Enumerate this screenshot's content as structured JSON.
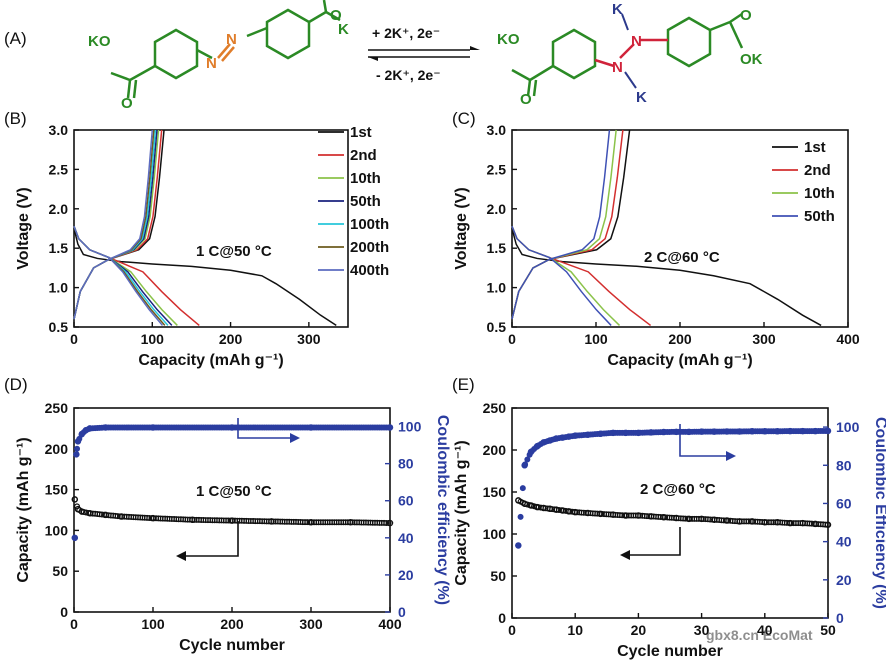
{
  "panel_a": {
    "label": "(A)",
    "left_molecule": {
      "groups": [
        "KO",
        "K"
      ],
      "link_atoms": [
        "N",
        "N"
      ],
      "oxygen": "O"
    },
    "right_molecule": {
      "groups": [
        "KO",
        "OK"
      ],
      "link_atoms": [
        "N",
        "N"
      ],
      "potassium": "K",
      "oxygen": "O"
    },
    "forward_label": "+ 2K⁺, 2e⁻",
    "reverse_label": "- 2K⁺, 2e⁻",
    "colors": {
      "carbon": "#2b8a25",
      "nitrogen_left": "#e07d2a",
      "nitrogen_right": "#d0233a",
      "potassium": "#2c3a8c"
    }
  },
  "chart_data": [
    {
      "panel": "(B)",
      "type": "line",
      "xlabel": "Capacity (mAh g⁻¹)",
      "ylabel": "Voltage (V)",
      "xlim": [
        0,
        350
      ],
      "ylim": [
        0.5,
        3.0
      ],
      "xticks": [
        "0",
        "100",
        "200",
        "300"
      ],
      "yticks": [
        "0.5",
        "1.0",
        "1.5",
        "2.0",
        "2.5",
        "3.0"
      ],
      "annotation": "1 C@50 °C",
      "legend_position": "top-right",
      "series": [
        {
          "name": "1st",
          "color": "#111111",
          "discharge_capacity": 335,
          "charge_capacity": 115
        },
        {
          "name": "2nd",
          "color": "#d32f2f",
          "discharge_capacity": 160,
          "charge_capacity": 112
        },
        {
          "name": "10th",
          "color": "#8bc34a",
          "discharge_capacity": 132,
          "charge_capacity": 108
        },
        {
          "name": "50th",
          "color": "#1a237e",
          "discharge_capacity": 125,
          "charge_capacity": 106
        },
        {
          "name": "100th",
          "color": "#26c6da",
          "discharge_capacity": 120,
          "charge_capacity": 104
        },
        {
          "name": "200th",
          "color": "#6d5b1e",
          "discharge_capacity": 116,
          "charge_capacity": 102
        },
        {
          "name": "400th",
          "color": "#5c6bc0",
          "discharge_capacity": 113,
          "charge_capacity": 100
        }
      ]
    },
    {
      "panel": "(C)",
      "type": "line",
      "xlabel": "Capacity (mAh g⁻¹)",
      "ylabel": "Voltage (V)",
      "xlim": [
        0,
        400
      ],
      "ylim": [
        0.5,
        3.0
      ],
      "xticks": [
        "0",
        "100",
        "200",
        "300",
        "400"
      ],
      "yticks": [
        "0.5",
        "1.0",
        "1.5",
        "2.0",
        "2.5",
        "3.0"
      ],
      "annotation": "2 C@60 °C",
      "legend_position": "top-right",
      "series": [
        {
          "name": "1st",
          "color": "#111111",
          "discharge_capacity": 368,
          "charge_capacity": 140
        },
        {
          "name": "2nd",
          "color": "#d32f2f",
          "discharge_capacity": 165,
          "charge_capacity": 132
        },
        {
          "name": "10th",
          "color": "#8bc34a",
          "discharge_capacity": 128,
          "charge_capacity": 124
        },
        {
          "name": "50th",
          "color": "#3f51b5",
          "discharge_capacity": 118,
          "charge_capacity": 116
        }
      ]
    },
    {
      "panel": "(D)",
      "type": "scatter",
      "xlabel": "Cycle number",
      "ylabel": "Capacity (mAh g⁻¹)",
      "y2label": "Coulombic efficiency (%)",
      "xlim": [
        0,
        400
      ],
      "ylim": [
        0,
        250
      ],
      "y2lim": [
        0,
        110
      ],
      "xticks": [
        "0",
        "100",
        "200",
        "300",
        "400"
      ],
      "yticks": [
        "0",
        "50",
        "100",
        "150",
        "200",
        "250"
      ],
      "y2ticks": [
        "0",
        "20",
        "40",
        "60",
        "80",
        "100"
      ],
      "annotation": "1 C@50 °C",
      "series": [
        {
          "name": "Capacity",
          "axis": "left",
          "color": "#111111",
          "x": [
            1,
            5,
            10,
            20,
            40,
            60,
            100,
            150,
            200,
            250,
            300,
            350,
            400
          ],
          "values": [
            138,
            126,
            123,
            121,
            119,
            117,
            115,
            113,
            112,
            111,
            110,
            110,
            109
          ]
        },
        {
          "name": "Coulombic efficiency",
          "axis": "right",
          "color": "#2b3da0",
          "x": [
            1,
            3,
            5,
            10,
            15,
            20,
            40,
            100,
            200,
            300,
            400
          ],
          "values": [
            40,
            85,
            92,
            96,
            98,
            99,
            99.5,
            99.5,
            99.5,
            99.5,
            99.5
          ]
        }
      ]
    },
    {
      "panel": "(E)",
      "type": "scatter",
      "xlabel": "Cycle number",
      "ylabel": "Capacity (mAh g⁻¹)",
      "y2label": "Coulombic Efficiency (%)",
      "xlim": [
        0,
        50
      ],
      "ylim": [
        0,
        250
      ],
      "y2lim": [
        0,
        110
      ],
      "xticks": [
        "0",
        "10",
        "20",
        "30",
        "40",
        "50"
      ],
      "yticks": [
        "0",
        "50",
        "100",
        "150",
        "200",
        "250"
      ],
      "y2ticks": [
        "0",
        "20",
        "40",
        "60",
        "80",
        "100"
      ],
      "annotation": "2 C@60 °C",
      "series": [
        {
          "name": "Capacity",
          "axis": "left",
          "color": "#111111",
          "x": [
            1,
            2,
            3,
            4,
            5,
            6,
            7,
            8,
            9,
            10,
            12,
            14,
            16,
            18,
            20,
            22,
            24,
            26,
            28,
            30,
            32,
            34,
            36,
            38,
            40,
            42,
            44,
            46,
            48,
            50
          ],
          "values": [
            140,
            136,
            134,
            132,
            131,
            130,
            129,
            128,
            127,
            126,
            125,
            124,
            123,
            122,
            122,
            121,
            120,
            119,
            118,
            118,
            117,
            116,
            115,
            115,
            114,
            114,
            113,
            113,
            112,
            111
          ]
        },
        {
          "name": "Coulombic efficiency",
          "axis": "right",
          "color": "#2b3da0",
          "x": [
            1,
            2,
            3,
            4,
            5,
            6,
            7,
            8,
            9,
            10,
            12,
            14,
            16,
            18,
            20,
            22,
            24,
            26,
            28,
            30,
            32,
            34,
            36,
            38,
            40,
            42,
            44,
            46,
            48,
            50
          ],
          "values": [
            38,
            80,
            87,
            90,
            92,
            93,
            94,
            94.5,
            95,
            95.5,
            96,
            96.5,
            97,
            97,
            97,
            97.2,
            97.4,
            97.5,
            97.5,
            97.6,
            97.6,
            97.7,
            97.7,
            97.8,
            97.8,
            97.8,
            97.9,
            97.9,
            97.9,
            98
          ]
        }
      ]
    }
  ],
  "watermark": "gbx8.cn  EcoMat"
}
